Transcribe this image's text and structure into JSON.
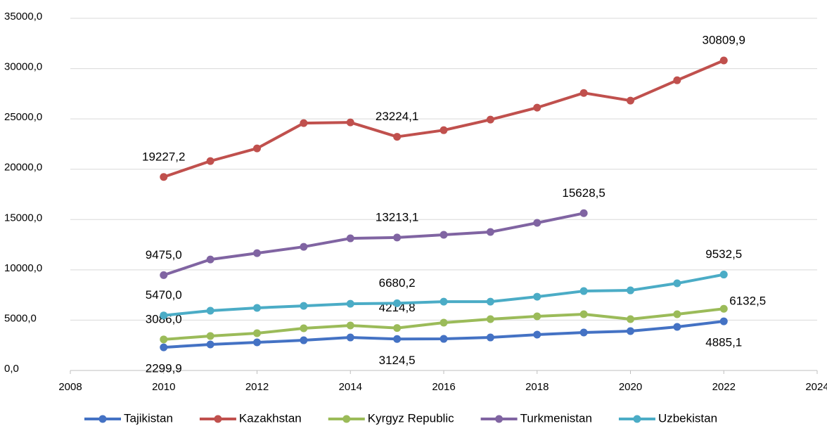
{
  "chart_data": {
    "type": "line",
    "x": [
      2010,
      2011,
      2012,
      2013,
      2014,
      2015,
      2016,
      2017,
      2018,
      2019,
      2020,
      2021,
      2022
    ],
    "xlim": [
      2008,
      2024
    ],
    "xticks": [
      2008,
      2010,
      2012,
      2014,
      2016,
      2018,
      2020,
      2022,
      2024
    ],
    "ylim": [
      0,
      35000
    ],
    "yticks": [
      {
        "value": 0,
        "label": "0,0"
      },
      {
        "value": 5000,
        "label": "5000,0"
      },
      {
        "value": 10000,
        "label": "10000,0"
      },
      {
        "value": 15000,
        "label": "15000,0"
      },
      {
        "value": 20000,
        "label": "20000,0"
      },
      {
        "value": 25000,
        "label": "25000,0"
      },
      {
        "value": 30000,
        "label": "30000,0"
      },
      {
        "value": 35000,
        "label": "35000,0"
      }
    ],
    "grid": true,
    "legend": "bottom",
    "series": [
      {
        "name": "Tajikistan",
        "color": "#4472c4",
        "values": [
          2299.9,
          2584,
          2793,
          3000,
          3280,
          3124.5,
          3140,
          3280,
          3560,
          3770,
          3910,
          4330,
          4885.1
        ],
        "value_labels": [
          "2299,9",
          null,
          null,
          null,
          null,
          "3124,5",
          null,
          null,
          null,
          null,
          null,
          null,
          "4885,1"
        ]
      },
      {
        "name": "Kazakhstan",
        "color": "#c0504d",
        "values": [
          19227.2,
          20810,
          22070,
          24580,
          24650,
          23224.1,
          23880,
          24930,
          26120,
          27580,
          26820,
          28840,
          30809.9
        ],
        "value_labels": [
          "19227,2",
          null,
          null,
          null,
          null,
          "23224,1",
          null,
          null,
          null,
          null,
          null,
          null,
          "30809,9"
        ]
      },
      {
        "name": "Kyrgyz Republic",
        "color": "#9bbb59",
        "values": [
          3086.0,
          3420,
          3700,
          4190,
          4470,
          4214.8,
          4750,
          5100,
          5380,
          5590,
          5100,
          5590,
          6132.5
        ],
        "value_labels": [
          "3086,0",
          null,
          null,
          null,
          null,
          "4214,8",
          null,
          null,
          null,
          null,
          null,
          null,
          "6132,5"
        ]
      },
      {
        "name": "Turkmenistan",
        "color": "#8064a2",
        "values": [
          9475.0,
          11030,
          11660,
          12290,
          13130,
          13213.1,
          13480,
          13760,
          14670,
          15628.5,
          null,
          null,
          null
        ],
        "value_labels": [
          "9475,0",
          null,
          null,
          null,
          null,
          "13213,1",
          null,
          null,
          null,
          "15628,5",
          null,
          null,
          null
        ]
      },
      {
        "name": "Uzbekistan",
        "color": "#4bacc6",
        "values": [
          5470.0,
          5940,
          6220,
          6420,
          6630,
          6680.2,
          6840,
          6840,
          7330,
          7890,
          7960,
          8660,
          9532.5
        ],
        "value_labels": [
          "5470,0",
          null,
          null,
          null,
          null,
          "6680,2",
          null,
          null,
          null,
          null,
          null,
          null,
          "9532,5"
        ]
      }
    ]
  }
}
